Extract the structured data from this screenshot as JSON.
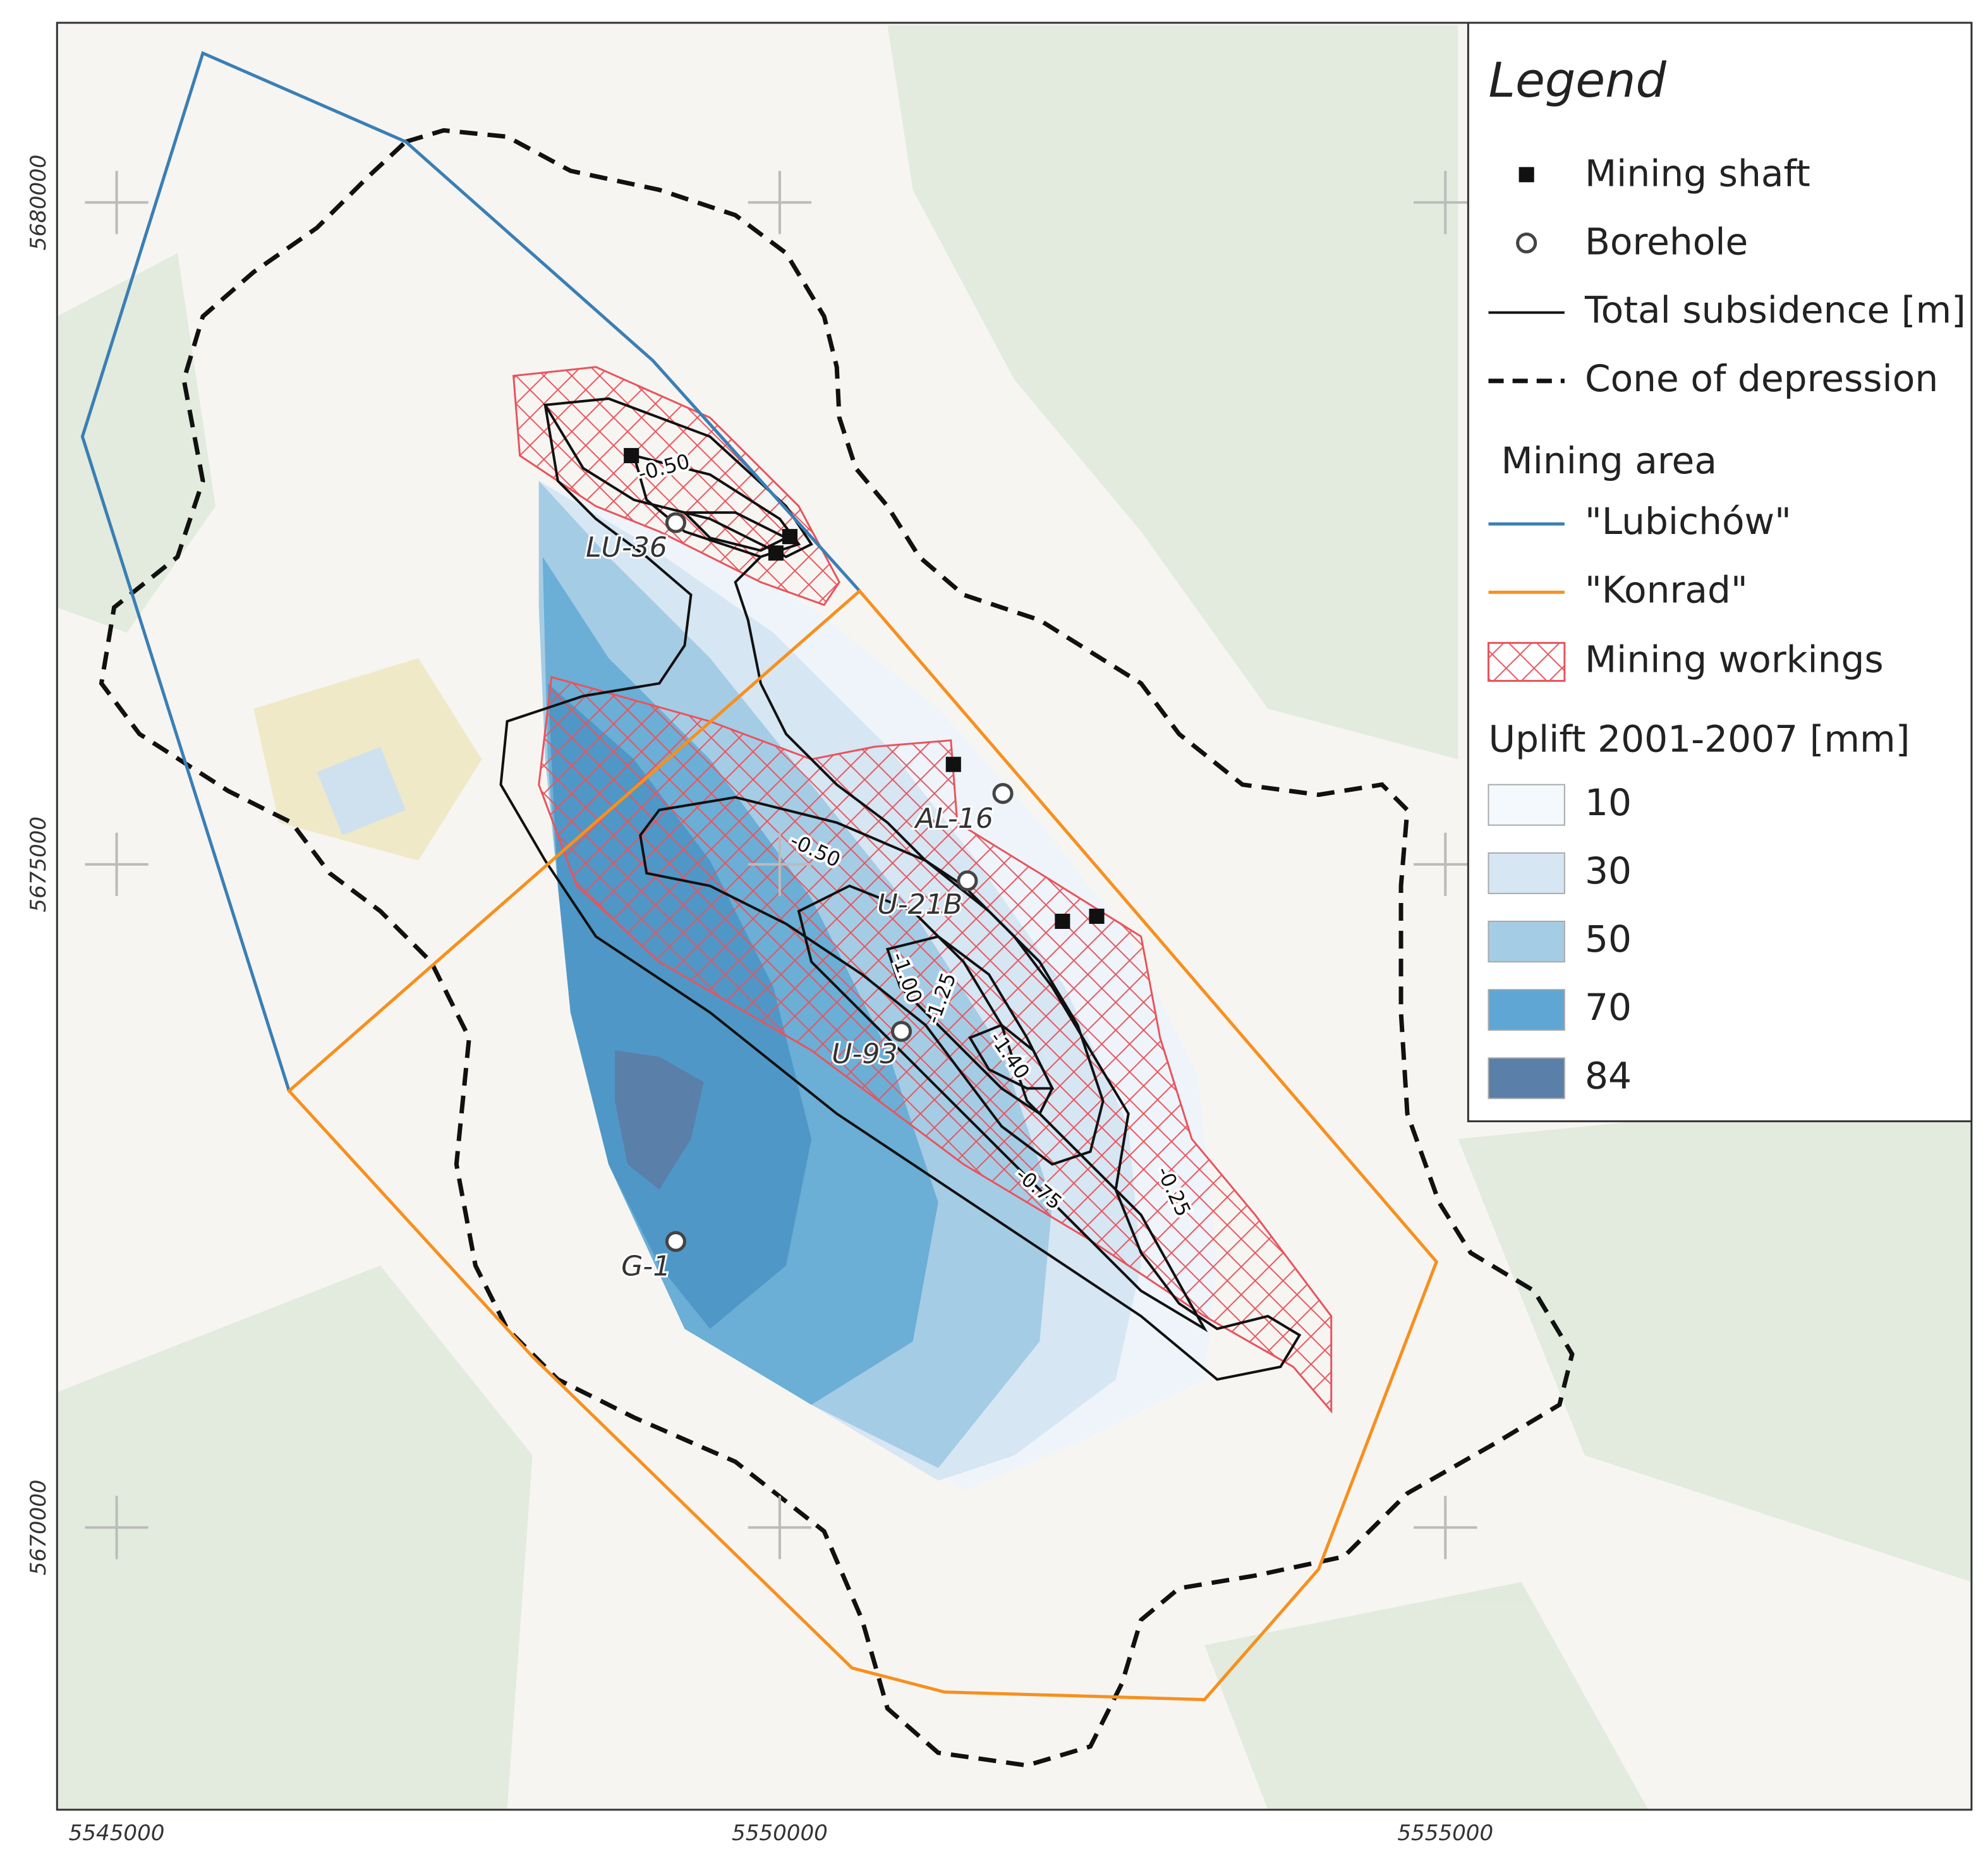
{
  "legend": {
    "title": "Legend",
    "items": [
      "Mining shaft",
      "Borehole",
      "Total subsidence [m]",
      "Cone of depression"
    ],
    "mining_area_title": "Mining area",
    "mining_areas": [
      "\"Lubichów\"",
      "\"Konrad\"",
      "Mining workings"
    ],
    "uplift_title": "Uplift 2001-2007 [mm]",
    "uplift_classes": [
      "10",
      "30",
      "50",
      "70",
      "84"
    ]
  },
  "boreholes": [
    "LU-36",
    "AL-16",
    "U-21B",
    "U-93",
    "G-1"
  ],
  "contour_labels": [
    "-0.50",
    "-0.50",
    "-1.00",
    "-1.25",
    "-1.40",
    "-0.75",
    "-0.25"
  ],
  "axes": {
    "x_labels": [
      "5545000",
      "5550000",
      "5555000"
    ],
    "y_labels": [
      "5680000",
      "5675000",
      "5670000"
    ]
  }
}
